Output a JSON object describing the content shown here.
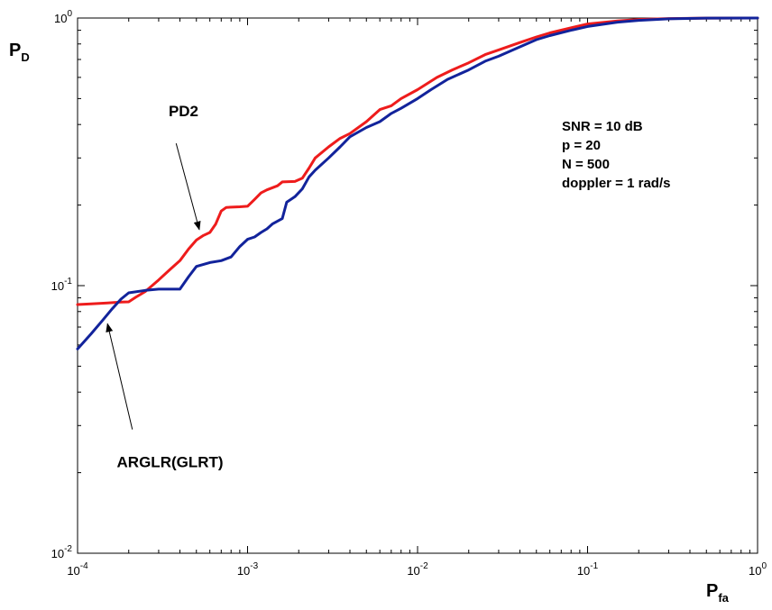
{
  "chart_data": {
    "type": "line",
    "xscale": "log",
    "yscale": "log",
    "xlim": [
      0.0001,
      1
    ],
    "ylim": [
      0.01,
      1
    ],
    "x_ticks": [
      {
        "base": "10",
        "exp": "-4",
        "value": 0.0001
      },
      {
        "base": "10",
        "exp": "-3",
        "value": 0.001
      },
      {
        "base": "10",
        "exp": "-2",
        "value": 0.01
      },
      {
        "base": "10",
        "exp": "-1",
        "value": 0.1
      },
      {
        "base": "10",
        "exp": "0",
        "value": 1
      }
    ],
    "y_ticks": [
      {
        "base": "10",
        "exp": "-2",
        "value": 0.01
      },
      {
        "base": "10",
        "exp": "-1",
        "value": 0.1
      },
      {
        "base": "10",
        "exp": "0",
        "value": 1
      }
    ],
    "xlabel": {
      "main": "P",
      "sub": "fa"
    },
    "ylabel": {
      "main": "P",
      "sub": "D"
    },
    "grid": false,
    "series": [
      {
        "name": "PD2",
        "color": "#ee1c1c",
        "points": [
          [
            0.0001,
            0.085
          ],
          [
            0.00012,
            0.0855
          ],
          [
            0.00015,
            0.0862
          ],
          [
            0.00018,
            0.0868
          ],
          [
            0.0002,
            0.087
          ],
          [
            0.00022,
            0.0905
          ],
          [
            0.00025,
            0.095
          ],
          [
            0.0003,
            0.105
          ],
          [
            0.00035,
            0.115
          ],
          [
            0.0004,
            0.124
          ],
          [
            0.00045,
            0.137
          ],
          [
            0.0005,
            0.148
          ],
          [
            0.00055,
            0.154
          ],
          [
            0.0006,
            0.158
          ],
          [
            0.00065,
            0.17
          ],
          [
            0.0007,
            0.19
          ],
          [
            0.00075,
            0.196
          ],
          [
            0.0009,
            0.197
          ],
          [
            0.001,
            0.198
          ],
          [
            0.0011,
            0.21
          ],
          [
            0.0012,
            0.222
          ],
          [
            0.0013,
            0.228
          ],
          [
            0.0015,
            0.236
          ],
          [
            0.0016,
            0.244
          ],
          [
            0.0019,
            0.245
          ],
          [
            0.0021,
            0.252
          ],
          [
            0.0023,
            0.275
          ],
          [
            0.0025,
            0.3
          ],
          [
            0.003,
            0.33
          ],
          [
            0.0035,
            0.355
          ],
          [
            0.004,
            0.37
          ],
          [
            0.005,
            0.41
          ],
          [
            0.006,
            0.455
          ],
          [
            0.007,
            0.47
          ],
          [
            0.008,
            0.5
          ],
          [
            0.01,
            0.54
          ],
          [
            0.013,
            0.6
          ],
          [
            0.016,
            0.64
          ],
          [
            0.02,
            0.68
          ],
          [
            0.025,
            0.73
          ],
          [
            0.03,
            0.76
          ],
          [
            0.04,
            0.81
          ],
          [
            0.05,
            0.85
          ],
          [
            0.06,
            0.88
          ],
          [
            0.08,
            0.92
          ],
          [
            0.1,
            0.95
          ],
          [
            0.15,
            0.975
          ],
          [
            0.2,
            0.988
          ],
          [
            0.3,
            0.995
          ],
          [
            0.5,
            0.999
          ],
          [
            1,
            1.0
          ]
        ]
      },
      {
        "name": "ARGLR(GLRT)",
        "color": "#12239b",
        "points": [
          [
            0.0001,
            0.058
          ],
          [
            0.00012,
            0.066
          ],
          [
            0.00014,
            0.074
          ],
          [
            0.00016,
            0.082
          ],
          [
            0.00018,
            0.089
          ],
          [
            0.0002,
            0.094
          ],
          [
            0.00025,
            0.096
          ],
          [
            0.0003,
            0.097
          ],
          [
            0.0004,
            0.097
          ],
          [
            0.00045,
            0.108
          ],
          [
            0.0005,
            0.118
          ],
          [
            0.0006,
            0.122
          ],
          [
            0.0007,
            0.124
          ],
          [
            0.0008,
            0.128
          ],
          [
            0.0009,
            0.14
          ],
          [
            0.001,
            0.149
          ],
          [
            0.0011,
            0.152
          ],
          [
            0.0012,
            0.158
          ],
          [
            0.0013,
            0.163
          ],
          [
            0.0014,
            0.17
          ],
          [
            0.0016,
            0.178
          ],
          [
            0.0017,
            0.205
          ],
          [
            0.0018,
            0.21
          ],
          [
            0.0019,
            0.215
          ],
          [
            0.0021,
            0.23
          ],
          [
            0.0023,
            0.255
          ],
          [
            0.0025,
            0.27
          ],
          [
            0.003,
            0.3
          ],
          [
            0.0035,
            0.33
          ],
          [
            0.004,
            0.36
          ],
          [
            0.005,
            0.39
          ],
          [
            0.006,
            0.41
          ],
          [
            0.007,
            0.44
          ],
          [
            0.008,
            0.46
          ],
          [
            0.01,
            0.5
          ],
          [
            0.012,
            0.54
          ],
          [
            0.015,
            0.59
          ],
          [
            0.02,
            0.64
          ],
          [
            0.025,
            0.69
          ],
          [
            0.03,
            0.72
          ],
          [
            0.04,
            0.78
          ],
          [
            0.05,
            0.83
          ],
          [
            0.06,
            0.86
          ],
          [
            0.08,
            0.9
          ],
          [
            0.1,
            0.93
          ],
          [
            0.15,
            0.965
          ],
          [
            0.2,
            0.98
          ],
          [
            0.3,
            0.993
          ],
          [
            0.5,
            0.999
          ],
          [
            1,
            1.0
          ]
        ]
      }
    ],
    "annotations": [
      {
        "id": "pd2",
        "text": "PD2",
        "text_x": 0.00042,
        "text_y": 0.43,
        "arrow_from_x": 0.00038,
        "arrow_from_y": 0.34,
        "arrow_to_x": 0.00052,
        "arrow_to_y": 0.162
      },
      {
        "id": "arglr",
        "text": "ARGLR(GLRT)",
        "text_x": 0.00035,
        "text_y": 0.021,
        "arrow_from_x": 0.00021,
        "arrow_from_y": 0.029,
        "arrow_to_x": 0.00015,
        "arrow_to_y": 0.072
      }
    ],
    "parameters": [
      "SNR = 10 dB",
      "p = 20",
      "N = 500",
      "doppler = 1 rad/s"
    ]
  }
}
